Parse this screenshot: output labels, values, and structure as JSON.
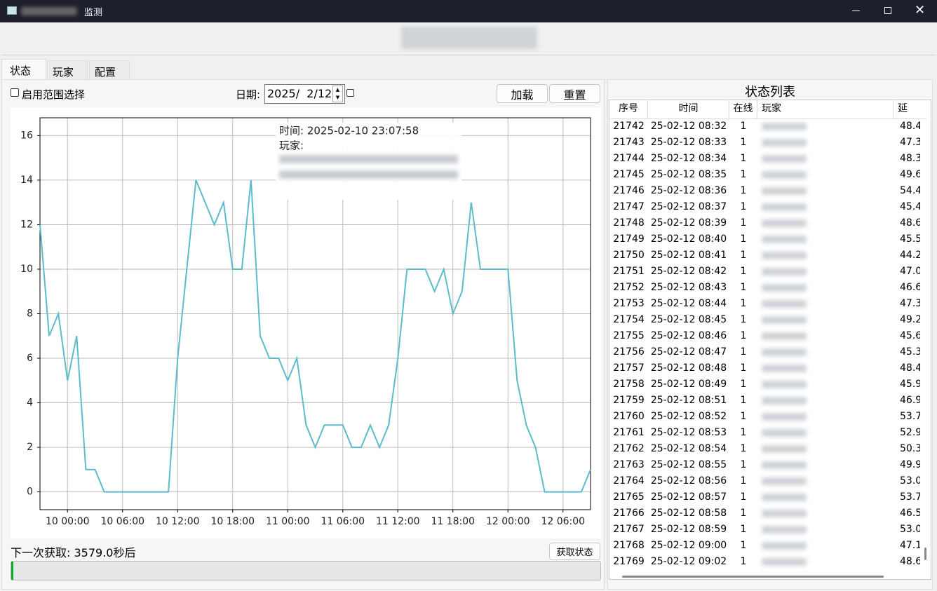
{
  "window": {
    "title": "监测"
  },
  "tabs": [
    "状态",
    "玩家",
    "配置"
  ],
  "controls": {
    "range_checkbox": "启用范围选择",
    "date_label": "日期:",
    "date_value": "2025/  2/12",
    "load_button": "加载",
    "reset_button": "重置"
  },
  "chart_data": {
    "type": "line",
    "x": [
      "09 21:00",
      "09 22:00",
      "09 23:00",
      "10 00:00",
      "10 01:00",
      "10 02:00",
      "10 03:00",
      "10 04:00",
      "10 05:00",
      "10 06:00",
      "10 07:00",
      "10 08:00",
      "10 09:00",
      "10 10:00",
      "10 11:00",
      "10 12:00",
      "10 13:00",
      "10 14:00",
      "10 15:00",
      "10 16:00",
      "10 17:00",
      "10 18:00",
      "10 19:00",
      "10 20:00",
      "10 21:00",
      "10 22:00",
      "10 23:00",
      "11 00:00",
      "11 01:00",
      "11 02:00",
      "11 03:00",
      "11 04:00",
      "11 05:00",
      "11 06:00",
      "11 07:00",
      "11 08:00",
      "11 09:00",
      "11 10:00",
      "11 11:00",
      "11 12:00",
      "11 13:00",
      "11 14:00",
      "11 15:00",
      "11 16:00",
      "11 17:00",
      "11 18:00",
      "11 19:00",
      "11 20:00",
      "11 21:00",
      "11 22:00",
      "11 23:00",
      "12 00:00",
      "12 01:00",
      "12 02:00",
      "12 03:00",
      "12 04:00",
      "12 05:00",
      "12 06:00",
      "12 07:00",
      "12 08:00",
      "12 09:00"
    ],
    "series": [
      {
        "color": "#5bbccc",
        "values": [
          12,
          7,
          8,
          5,
          7,
          1,
          1,
          0,
          0,
          0,
          0,
          0,
          0,
          0,
          0,
          6,
          10,
          14,
          13,
          12,
          13,
          10,
          10,
          14,
          7,
          6,
          6,
          5,
          6,
          3,
          2,
          3,
          3,
          3,
          2,
          2,
          3,
          2,
          3,
          6,
          10,
          10,
          10,
          9,
          10,
          8,
          9,
          13,
          10,
          10,
          10,
          10,
          5,
          3,
          2,
          0,
          0,
          0,
          0,
          0,
          1
        ]
      }
    ],
    "xlim": [
      "09 21:00",
      "12 09:00"
    ],
    "xticks": [
      "10 00:00",
      "10 06:00",
      "10 12:00",
      "10 18:00",
      "11 00:00",
      "11 06:00",
      "11 12:00",
      "11 18:00",
      "12 00:00",
      "12 06:00"
    ],
    "ylim": [
      -0.8,
      16.8
    ],
    "yticks": [
      0,
      2,
      4,
      6,
      8,
      10,
      12,
      14,
      16
    ],
    "grid": true,
    "annotations": [
      "时间: 2025-02-10 23:07:58",
      "玩家:"
    ]
  },
  "status": {
    "next_fetch": "下一次获取: 3579.0秒后",
    "fetch_button": "获取状态",
    "progress": 0.4
  },
  "table": {
    "title": "状态列表",
    "columns": [
      "序号",
      "时间",
      "在线",
      "玩家",
      "延"
    ],
    "rows": [
      [
        "21742",
        "25-02-12 08:32",
        "1",
        "48.4"
      ],
      [
        "21743",
        "25-02-12 08:33",
        "1",
        "47.3"
      ],
      [
        "21744",
        "25-02-12 08:34",
        "1",
        "48.3"
      ],
      [
        "21745",
        "25-02-12 08:35",
        "1",
        "49.6"
      ],
      [
        "21746",
        "25-02-12 08:36",
        "1",
        "54.4"
      ],
      [
        "21747",
        "25-02-12 08:37",
        "1",
        "45.4"
      ],
      [
        "21748",
        "25-02-12 08:39",
        "1",
        "48.6"
      ],
      [
        "21749",
        "25-02-12 08:40",
        "1",
        "45.5"
      ],
      [
        "21750",
        "25-02-12 08:41",
        "1",
        "44.2"
      ],
      [
        "21751",
        "25-02-12 08:42",
        "1",
        "47.0"
      ],
      [
        "21752",
        "25-02-12 08:43",
        "1",
        "46.6"
      ],
      [
        "21753",
        "25-02-12 08:44",
        "1",
        "47.3"
      ],
      [
        "21754",
        "25-02-12 08:45",
        "1",
        "49.2"
      ],
      [
        "21755",
        "25-02-12 08:46",
        "1",
        "45.6"
      ],
      [
        "21756",
        "25-02-12 08:47",
        "1",
        "45.3"
      ],
      [
        "21757",
        "25-02-12 08:48",
        "1",
        "48.4"
      ],
      [
        "21758",
        "25-02-12 08:49",
        "1",
        "45.9"
      ],
      [
        "21759",
        "25-02-12 08:51",
        "1",
        "46.9"
      ],
      [
        "21760",
        "25-02-12 08:52",
        "1",
        "53.7"
      ],
      [
        "21761",
        "25-02-12 08:53",
        "1",
        "52.9"
      ],
      [
        "21762",
        "25-02-12 08:54",
        "1",
        "50.3"
      ],
      [
        "21763",
        "25-02-12 08:55",
        "1",
        "49.9"
      ],
      [
        "21764",
        "25-02-12 08:56",
        "1",
        "53.0"
      ],
      [
        "21765",
        "25-02-12 08:57",
        "1",
        "53.7"
      ],
      [
        "21766",
        "25-02-12 08:58",
        "1",
        "46.5"
      ],
      [
        "21767",
        "25-02-12 08:59",
        "1",
        "53.0"
      ],
      [
        "21768",
        "25-02-12 09:00",
        "1",
        "47.1"
      ],
      [
        "21769",
        "25-02-12 09:02",
        "1",
        "48.6"
      ]
    ]
  }
}
